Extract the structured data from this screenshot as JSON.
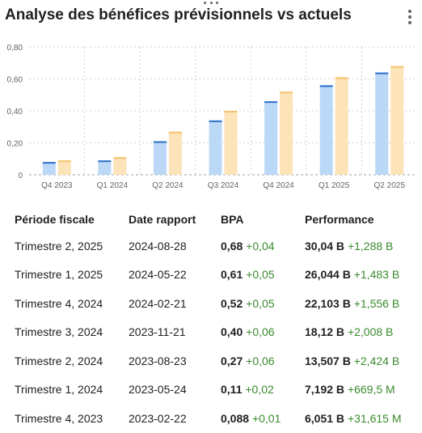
{
  "title": "Analyse des bénéfices prévisionnels vs actuels",
  "colors": {
    "actual": "#bcd8f7",
    "actual_top": "#2a6fc9",
    "estimate": "#fde3b8",
    "estimate_top": "#f5c26b",
    "positive": "#3a8a2e"
  },
  "chart_data": {
    "type": "bar",
    "categories": [
      "Q4 2023",
      "Q1 2024",
      "Q2 2024",
      "Q3 2024",
      "Q4 2024",
      "Q1 2025",
      "Q2 2025"
    ],
    "series": [
      {
        "values": [
          0.08,
          0.09,
          0.21,
          0.34,
          0.46,
          0.56,
          0.64
        ]
      },
      {
        "values": [
          0.09,
          0.11,
          0.27,
          0.4,
          0.52,
          0.61,
          0.68
        ]
      }
    ],
    "ylim": [
      0,
      0.8
    ],
    "yticks": [
      "0",
      "0,20",
      "0,40",
      "0,60",
      "0,80"
    ],
    "grid": true
  },
  "table": {
    "headers": [
      "Période fiscale",
      "Date rapport",
      "BPA",
      "Performance"
    ],
    "rows": [
      {
        "period": "Trimestre 2, 2025",
        "date": "2024-08-28",
        "eps": "0,68",
        "eps_delta": "+0,04",
        "perf": "30,04 B",
        "perf_delta": "+1,288 B"
      },
      {
        "period": "Trimestre 1, 2025",
        "date": "2024-05-22",
        "eps": "0,61",
        "eps_delta": "+0,05",
        "perf": "26,044 B",
        "perf_delta": "+1,483 B"
      },
      {
        "period": "Trimestre 4, 2024",
        "date": "2024-02-21",
        "eps": "0,52",
        "eps_delta": "+0,05",
        "perf": "22,103 B",
        "perf_delta": "+1,556 B"
      },
      {
        "period": "Trimestre 3, 2024",
        "date": "2023-11-21",
        "eps": "0,40",
        "eps_delta": "+0,06",
        "perf": "18,12 B",
        "perf_delta": "+2,008 B"
      },
      {
        "period": "Trimestre 2, 2024",
        "date": "2023-08-23",
        "eps": "0,27",
        "eps_delta": "+0,06",
        "perf": "13,507 B",
        "perf_delta": "+2,424 B"
      },
      {
        "period": "Trimestre 1, 2024",
        "date": "2023-05-24",
        "eps": "0,11",
        "eps_delta": "+0,02",
        "perf": "7,192 B",
        "perf_delta": "+669,5 M"
      },
      {
        "period": "Trimestre 4, 2023",
        "date": "2023-02-22",
        "eps": "0,088",
        "eps_delta": "+0,01",
        "perf": "6,051 B",
        "perf_delta": "+31,615 M"
      }
    ]
  }
}
